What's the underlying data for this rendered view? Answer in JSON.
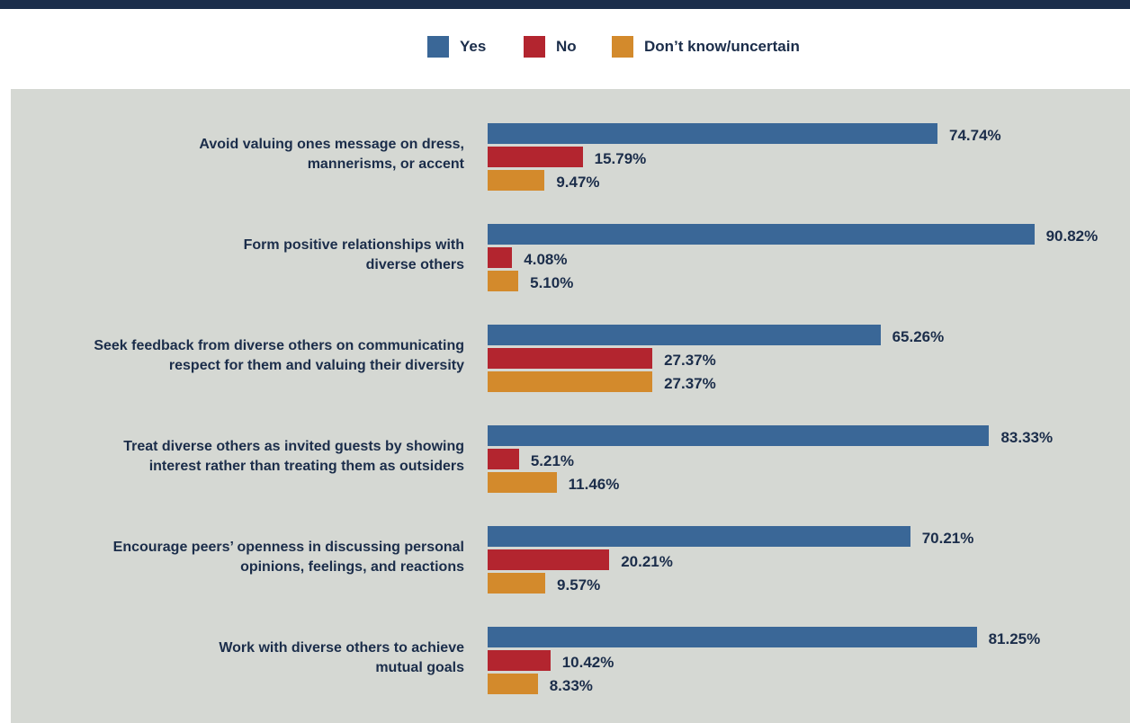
{
  "chart_data": {
    "type": "bar",
    "orientation": "horizontal",
    "categories": [
      "Avoid valuing ones message on dress, mannerisms, or accent",
      "Form positive relationships with diverse others",
      "Seek feedback from diverse others on communicating respect for them and valuing their diversity",
      "Treat diverse others as invited guests by showing interest rather than treating them as outsiders",
      "Encourage peers’ openness in discussing personal opinions, feelings, and reactions",
      "Work with diverse others to achieve mutual goals"
    ],
    "category_lines": [
      [
        "Avoid valuing ones message on dress,",
        "mannerisms, or accent"
      ],
      [
        "Form positive relationships with",
        "diverse others"
      ],
      [
        "Seek feedback from diverse others on communicating",
        "respect for them and valuing their diversity"
      ],
      [
        "Treat diverse others as invited guests by showing",
        "interest rather than treating them as outsiders"
      ],
      [
        "Encourage peers’ openness in discussing personal",
        "opinions, feelings, and reactions"
      ],
      [
        "Work with diverse others to achieve",
        "mutual goals"
      ]
    ],
    "series": [
      {
        "name": "Yes",
        "color": "#3a6797",
        "values": [
          74.74,
          90.82,
          65.26,
          83.33,
          70.21,
          81.25
        ],
        "labels": [
          "74.74%",
          "90.82%",
          "65.26%",
          "83.33%",
          "70.21%",
          "81.25%"
        ]
      },
      {
        "name": "No",
        "color": "#b3252f",
        "values": [
          15.79,
          4.08,
          27.37,
          5.21,
          20.21,
          10.42
        ],
        "labels": [
          "15.79%",
          "4.08%",
          "27.37%",
          "5.21%",
          "20.21%",
          "10.42%"
        ]
      },
      {
        "name": "Don’t know/uncertain",
        "color": "#d38a2c",
        "values": [
          9.47,
          5.1,
          27.37,
          11.46,
          9.57,
          8.33
        ],
        "labels": [
          "9.47%",
          "5.10%",
          "27.37%",
          "11.46%",
          "9.57%",
          "8.33%"
        ]
      }
    ],
    "xlim": [
      0,
      100
    ],
    "legend_position": "top-center",
    "grid": false
  },
  "colors": {
    "top_rule": "#1b2d4a",
    "panel_background": "#d5d8d3",
    "text": "#1b2d4a"
  }
}
